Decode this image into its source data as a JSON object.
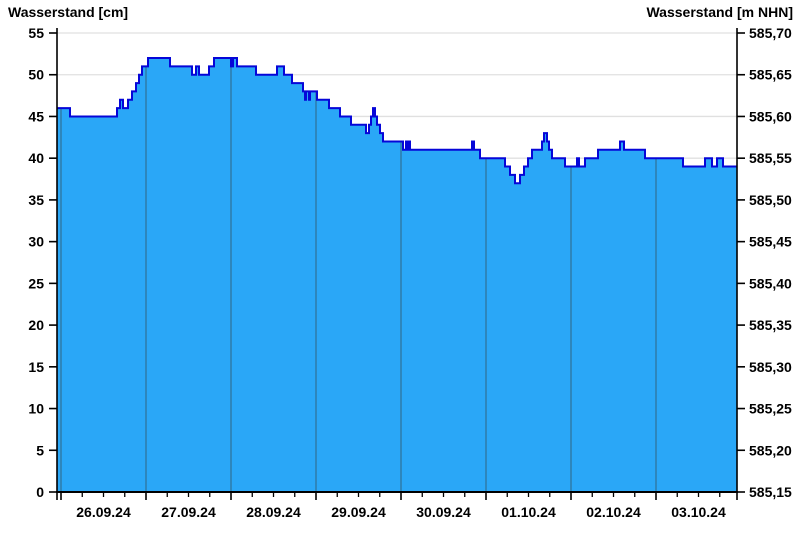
{
  "titles": {
    "left": "Wasserstand [cm]",
    "right": "Wasserstand [m NHN]"
  },
  "chart_data": {
    "type": "area",
    "step": true,
    "title": "Wasserstand",
    "xlabel": "",
    "ylabel_left": "Wasserstand [cm]",
    "ylabel_right": "Wasserstand [m NHN]",
    "x_tick_labels": [
      "26.09.24",
      "27.09.24",
      "28.09.24",
      "29.09.24",
      "30.09.24",
      "01.10.24",
      "02.10.24",
      "03.10.24"
    ],
    "x_range_days": {
      "start": -0.047,
      "end": 7.953,
      "day_count": 8,
      "minor_tick_days": 0.25
    },
    "y_left": {
      "min": 0,
      "max": 55,
      "step": 5,
      "tick_labels": [
        "0",
        "5",
        "10",
        "15",
        "20",
        "25",
        "30",
        "35",
        "40",
        "45",
        "50",
        "55"
      ]
    },
    "y_right": {
      "min": 585.15,
      "max": 585.7,
      "step": 0.05,
      "tick_labels": [
        "585,15",
        "585,20",
        "585,25",
        "585,30",
        "585,35",
        "585,40",
        "585,45",
        "585,50",
        "585,55",
        "585,60",
        "585,65",
        "585,70"
      ]
    },
    "grid": "on",
    "legend": "none",
    "series": [
      {
        "name": "Wasserstand [cm]",
        "unit": "cm",
        "points": [
          [
            -0.047,
            46
          ],
          [
            0.106,
            45
          ],
          [
            0.659,
            46
          ],
          [
            0.694,
            47
          ],
          [
            0.729,
            46
          ],
          [
            0.788,
            47
          ],
          [
            0.835,
            48
          ],
          [
            0.882,
            49
          ],
          [
            0.918,
            50
          ],
          [
            0.953,
            51
          ],
          [
            1.024,
            52
          ],
          [
            1.282,
            51
          ],
          [
            1.541,
            50
          ],
          [
            1.588,
            51
          ],
          [
            1.624,
            50
          ],
          [
            1.741,
            51
          ],
          [
            1.8,
            52
          ],
          [
            2.0,
            51
          ],
          [
            2.024,
            52
          ],
          [
            2.071,
            51
          ],
          [
            2.294,
            50
          ],
          [
            2.541,
            51
          ],
          [
            2.624,
            50
          ],
          [
            2.718,
            49
          ],
          [
            2.847,
            48
          ],
          [
            2.871,
            47
          ],
          [
            2.882,
            48
          ],
          [
            2.918,
            47
          ],
          [
            2.929,
            48
          ],
          [
            3.012,
            47
          ],
          [
            3.153,
            46
          ],
          [
            3.282,
            45
          ],
          [
            3.412,
            44
          ],
          [
            3.588,
            43
          ],
          [
            3.624,
            44
          ],
          [
            3.647,
            45
          ],
          [
            3.671,
            46
          ],
          [
            3.694,
            45
          ],
          [
            3.718,
            44
          ],
          [
            3.753,
            43
          ],
          [
            3.788,
            42
          ],
          [
            4.024,
            41
          ],
          [
            4.059,
            42
          ],
          [
            4.071,
            41
          ],
          [
            4.094,
            42
          ],
          [
            4.106,
            41
          ],
          [
            4.835,
            42
          ],
          [
            4.859,
            41
          ],
          [
            4.929,
            40
          ],
          [
            5.224,
            39
          ],
          [
            5.282,
            38
          ],
          [
            5.341,
            37
          ],
          [
            5.4,
            38
          ],
          [
            5.447,
            39
          ],
          [
            5.494,
            40
          ],
          [
            5.541,
            41
          ],
          [
            5.659,
            42
          ],
          [
            5.682,
            43
          ],
          [
            5.718,
            42
          ],
          [
            5.741,
            41
          ],
          [
            5.776,
            40
          ],
          [
            5.929,
            39
          ],
          [
            6.071,
            40
          ],
          [
            6.094,
            39
          ],
          [
            6.165,
            40
          ],
          [
            6.318,
            41
          ],
          [
            6.576,
            42
          ],
          [
            6.624,
            41
          ],
          [
            6.871,
            40
          ],
          [
            7.318,
            39
          ],
          [
            7.576,
            40
          ],
          [
            7.659,
            39
          ],
          [
            7.718,
            40
          ],
          [
            7.788,
            39
          ]
        ]
      }
    ],
    "colors": {
      "fill": "#2aa7f7",
      "line": "#0606d8",
      "day_grid": "#2e7ba9",
      "grid": "#e0e0e0",
      "axis": "#000000",
      "background": "#ffffff"
    }
  }
}
